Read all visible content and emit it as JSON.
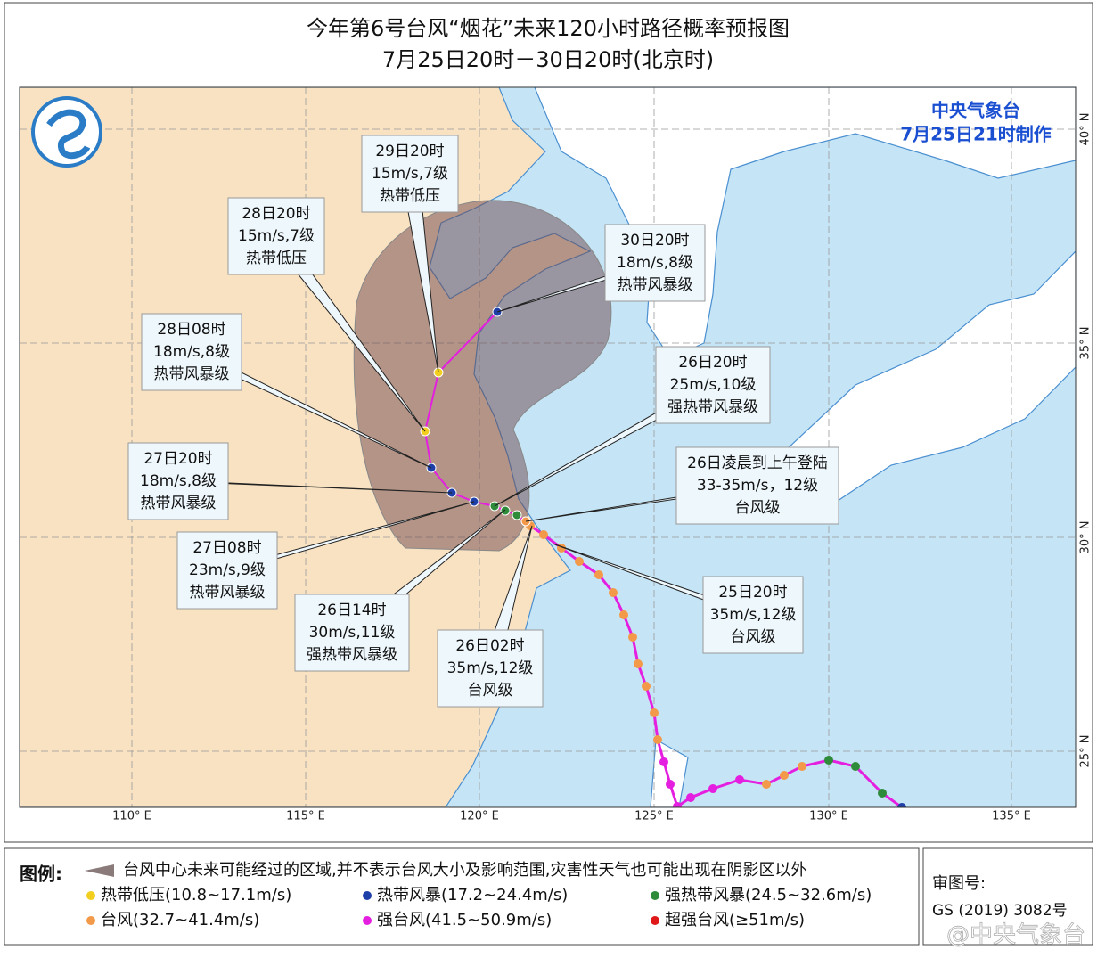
{
  "title": "今年第6号台风“烟花”未来120小时路径概率预报图",
  "subtitle": "7月25日20时－30日20时(北京时)",
  "agency": "中央气象台",
  "issued": "7月25日21时制作",
  "callouts": [
    {
      "time": "29日20时",
      "wind": "15m/s,7级",
      "level": "热带低压"
    },
    {
      "time": "28日20时",
      "wind": "15m/s,7级",
      "level": "热带低压"
    },
    {
      "time": "30日20时",
      "wind": "18m/s,8级",
      "level": "热带风暴级"
    },
    {
      "time": "28日08时",
      "wind": "18m/s,8级",
      "level": "热带风暴级"
    },
    {
      "time": "26日20时",
      "wind": "25m/s,10级",
      "level": "强热带风暴级"
    },
    {
      "time": "27日20时",
      "wind": "18m/s,8级",
      "level": "热带风暴级"
    },
    {
      "time": "26日凌晨到上午登陆",
      "wind": "33-35m/s，12级",
      "level": "台风级"
    },
    {
      "time": "27日08时",
      "wind": "23m/s,9级",
      "level": "热带风暴级"
    },
    {
      "time": "25日20时",
      "wind": "35m/s,12级",
      "level": "台风级"
    },
    {
      "time": "26日14时",
      "wind": "30m/s,11级",
      "level": "强热带风暴级"
    },
    {
      "time": "26日02时",
      "wind": "35m/s,12级",
      "level": "台风级"
    }
  ],
  "lon_labels": [
    "110° E",
    "115° E",
    "120° E",
    "125° E",
    "130° E",
    "135° E"
  ],
  "lat_labels": [
    "40° N",
    "35° N",
    "30° N",
    "25° N"
  ],
  "legend": {
    "title": "图例:",
    "area": "台风中心未来可能经过的区域,并不表示台风大小及影响范围,灾害性天气也可能出现在阴影区以外",
    "items": [
      {
        "label": "热带低压(10.8~17.1m/s)",
        "color": "#f2cf1e"
      },
      {
        "label": "热带风暴(17.2~24.4m/s)",
        "color": "#1f3fa8"
      },
      {
        "label": "强热带风暴(24.5~32.6m/s)",
        "color": "#2e8b3a"
      },
      {
        "label": "台风(32.7~41.4m/s)",
        "color": "#f39a4a"
      },
      {
        "label": "强台风(41.5~50.9m/s)",
        "color": "#e41fe0"
      },
      {
        "label": "超强台风(≥51m/s)",
        "color": "#e01818"
      }
    ]
  },
  "review": {
    "label": "审图号:",
    "number": "GS (2019) 3082号"
  },
  "watermark": "@中央气象台"
}
